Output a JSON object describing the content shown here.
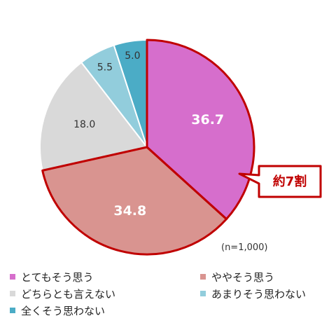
{
  "chart_data": {
    "type": "pie",
    "categories": [
      "とてもそう思う",
      "ややそう思う",
      "どちらとも言えない",
      "あまりそう思わない",
      "全くそう思わない"
    ],
    "values": [
      36.7,
      34.8,
      18.0,
      5.5,
      5.0
    ],
    "value_labels": [
      "36.7",
      "34.8",
      "18.0",
      "5.5",
      "5.0"
    ],
    "colors": [
      "#d66ecc",
      "#d99490",
      "#d9d9d9",
      "#92cddc",
      "#4bacc6"
    ],
    "start_angle_deg": 0,
    "direction": "clockwise",
    "highlight": {
      "categories": [
        "とてもそう思う",
        "ややそう思う"
      ],
      "outline_color": "#c00000"
    },
    "callout": {
      "text": "約7割",
      "border_color": "#c00000",
      "text_color": "#c00000"
    },
    "note": "(n=1,000)",
    "legend_position": "bottom",
    "legend_color_list": [
      "#d66ecc",
      "#d99490",
      "#d9d9d9",
      "#92cddc",
      "#4bacc6"
    ]
  }
}
